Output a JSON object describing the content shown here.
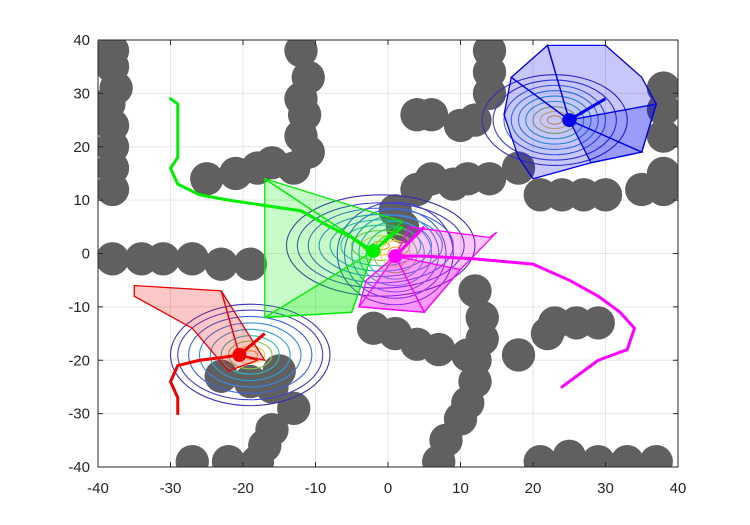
{
  "chart_data": {
    "type": "scatter",
    "title": "",
    "xlabel": "",
    "ylabel": "",
    "xlim": [
      -40,
      40
    ],
    "ylim": [
      -40,
      40
    ],
    "grid": true,
    "x_ticks": [
      -40,
      -30,
      -20,
      -10,
      0,
      10,
      20,
      30,
      40
    ],
    "y_ticks": [
      -40,
      -30,
      -20,
      -10,
      0,
      10,
      20,
      30,
      40
    ],
    "x_tick_labels": [
      "-40",
      "-30",
      "-20",
      "-10",
      "0",
      "10",
      "20",
      "30",
      "40"
    ],
    "y_tick_labels": [
      "-40",
      "-30",
      "-20",
      "-10",
      "0",
      "10",
      "20",
      "30",
      "40"
    ],
    "obstacle_color": "#606060",
    "obstacle_radius": 2.3,
    "obstacles": [
      [
        -38,
        38
      ],
      [
        -38,
        35
      ],
      [
        -37.5,
        31
      ],
      [
        -38.5,
        28
      ],
      [
        -38,
        24
      ],
      [
        -38,
        20
      ],
      [
        -38,
        16
      ],
      [
        -38,
        12
      ],
      [
        -12,
        38
      ],
      [
        -11,
        33
      ],
      [
        -12,
        29
      ],
      [
        -11.5,
        26
      ],
      [
        -12,
        22
      ],
      [
        -11,
        19
      ],
      [
        -13,
        16
      ],
      [
        -16,
        17
      ],
      [
        -18,
        16
      ],
      [
        -21,
        15
      ],
      [
        -25,
        14
      ],
      [
        -38,
        -1
      ],
      [
        -34,
        -1
      ],
      [
        -31,
        -1
      ],
      [
        -27,
        -1
      ],
      [
        -23,
        -2
      ],
      [
        -19,
        -2
      ],
      [
        -23,
        -23
      ],
      [
        -19,
        -24
      ],
      [
        -15,
        -22
      ],
      [
        -16,
        -25
      ],
      [
        -13,
        -29
      ],
      [
        -16,
        -33
      ],
      [
        -17,
        -36
      ],
      [
        -18,
        -39
      ],
      [
        -22,
        -39
      ],
      [
        -27,
        -39
      ],
      [
        14,
        38
      ],
      [
        14,
        34
      ],
      [
        14,
        30
      ],
      [
        12,
        25
      ],
      [
        10,
        24
      ],
      [
        6,
        26
      ],
      [
        4,
        26
      ],
      [
        2,
        5
      ],
      [
        1,
        8
      ],
      [
        4,
        12
      ],
      [
        6,
        14
      ],
      [
        9,
        13
      ],
      [
        11,
        14
      ],
      [
        14,
        14
      ],
      [
        18,
        16
      ],
      [
        21,
        11
      ],
      [
        24,
        11
      ],
      [
        27,
        11
      ],
      [
        30,
        11
      ],
      [
        35,
        12
      ],
      [
        38,
        12
      ],
      [
        38,
        15
      ],
      [
        38,
        22
      ],
      [
        38,
        27
      ],
      [
        38,
        31
      ],
      [
        -2,
        -14
      ],
      [
        1,
        -15
      ],
      [
        4,
        -17
      ],
      [
        7,
        -18
      ],
      [
        11,
        -19
      ],
      [
        12,
        -7
      ],
      [
        13,
        -12
      ],
      [
        13,
        -16
      ],
      [
        12,
        -20
      ],
      [
        12,
        -24
      ],
      [
        11,
        -28
      ],
      [
        10,
        -31
      ],
      [
        8,
        -35
      ],
      [
        7,
        -39
      ],
      [
        18,
        -19
      ],
      [
        22,
        -15
      ],
      [
        23,
        -13
      ],
      [
        26,
        -13
      ],
      [
        29,
        -13
      ],
      [
        21,
        -39
      ],
      [
        25,
        -38
      ],
      [
        29,
        -39
      ],
      [
        33,
        -39
      ],
      [
        37,
        -39
      ]
    ],
    "series": [
      {
        "color": "#00ee00",
        "path": [
          [
            -30,
            29
          ],
          [
            -29,
            28
          ],
          [
            -29,
            24
          ],
          [
            -29,
            20
          ],
          [
            -29,
            18
          ],
          [
            -30,
            16
          ],
          [
            -29,
            13
          ],
          [
            -26,
            11
          ],
          [
            -22,
            10
          ],
          [
            -17,
            9
          ],
          [
            -12,
            8
          ],
          [
            -8,
            5
          ],
          [
            -5,
            3
          ],
          [
            -3,
            1
          ],
          [
            -2,
            0.5
          ]
        ],
        "robot": [
          -2,
          0.5
        ],
        "heading": [
          2,
          5
        ],
        "polygons": [
          [
            [
              -2,
              0.5
            ],
            [
              -17,
              14
            ],
            [
              -17,
              -12
            ],
            [
              -5,
              -11
            ]
          ],
          [
            [
              -2,
              0.5
            ],
            [
              -5,
              -11
            ],
            [
              -17,
              -12
            ]
          ],
          [
            [
              -2,
              0.5
            ],
            [
              2,
              6
            ],
            [
              -17,
              14
            ]
          ]
        ],
        "contour_center": [
          -1,
          1.5
        ],
        "contour_rx": [
          1.2,
          2.5,
          4,
          5.5,
          7,
          8.5,
          10,
          11.5,
          13
        ],
        "contour_ry": [
          0.8,
          1.8,
          2.8,
          3.8,
          4.8,
          5.8,
          7,
          8,
          9.5
        ]
      },
      {
        "color": "#ff00ff",
        "path": [
          [
            1,
            -0.5
          ],
          [
            5,
            -0.5
          ],
          [
            12,
            -1
          ],
          [
            20,
            -2
          ],
          [
            25,
            -5
          ],
          [
            29,
            -8
          ],
          [
            32,
            -11
          ],
          [
            34,
            -14
          ],
          [
            33,
            -18
          ],
          [
            29,
            -20
          ],
          [
            26,
            -23
          ],
          [
            24,
            -25
          ]
        ],
        "robot": [
          1,
          -0.5
        ],
        "heading": [
          5,
          5
        ],
        "polygons": [
          [
            [
              1,
              -0.5
            ],
            [
              3,
              5
            ],
            [
              14,
              3
            ],
            [
              15,
              4
            ],
            [
              10,
              -3
            ],
            [
              5,
              -11
            ],
            [
              -4,
              -10
            ],
            [
              -3,
              -5
            ]
          ],
          [
            [
              1,
              -0.5
            ],
            [
              5,
              -11
            ],
            [
              -4,
              -10
            ]
          ],
          [
            [
              1,
              -0.5
            ],
            [
              10,
              -3
            ],
            [
              5,
              -11
            ]
          ]
        ],
        "contour_center": [
          1,
          0
        ],
        "contour_rx": [
          1,
          2,
          3,
          4,
          5,
          6,
          7,
          8
        ],
        "contour_ry": [
          1.2,
          2.4,
          3.6,
          4.8,
          6,
          7.2,
          8.4,
          9.6
        ]
      },
      {
        "color": "#ee0000",
        "path": [
          [
            -29,
            -30
          ],
          [
            -29,
            -27
          ],
          [
            -30,
            -24
          ],
          [
            -29,
            -21
          ],
          [
            -26,
            -20
          ],
          [
            -23,
            -19.5
          ],
          [
            -20.5,
            -19
          ]
        ],
        "robot": [
          -20.5,
          -19
        ],
        "heading": [
          -17,
          -15
        ],
        "polygons": [
          [
            [
              -20.5,
              -19
            ],
            [
              -23,
              -7
            ],
            [
              -35,
              -6
            ],
            [
              -35,
              -8
            ],
            [
              -27,
              -14
            ],
            [
              -22,
              -22
            ],
            [
              -18,
              -20
            ]
          ],
          [
            [
              -20.5,
              -19
            ],
            [
              -23,
              -7
            ],
            [
              -17,
              -20
            ]
          ]
        ],
        "contour_center": [
          -19,
          -19
        ],
        "contour_rx": [
          1,
          2,
          3,
          4,
          5.5,
          7,
          8.5,
          10,
          11
        ],
        "contour_ry": [
          0.8,
          1.6,
          2.6,
          3.6,
          4.8,
          6,
          7.2,
          8.4,
          9.5
        ]
      },
      {
        "color": "#0000ee",
        "path": [],
        "robot": [
          25,
          25
        ],
        "heading": [
          30,
          29
        ],
        "polygons": [
          [
            [
              25,
              25
            ],
            [
              22,
              39
            ],
            [
              30,
              39
            ],
            [
              35,
              33
            ],
            [
              37,
              28
            ],
            [
              35,
              19
            ],
            [
              28,
              17
            ],
            [
              20,
              14
            ],
            [
              18,
              18
            ],
            [
              16,
              26
            ],
            [
              17,
              33
            ]
          ],
          [
            [
              25,
              25
            ],
            [
              17,
              33
            ],
            [
              22,
              39
            ]
          ],
          [
            [
              25,
              25
            ],
            [
              35,
              19
            ],
            [
              37,
              28
            ]
          ],
          [
            [
              25,
              25
            ],
            [
              28,
              17
            ],
            [
              35,
              19
            ]
          ]
        ],
        "contour_center": [
          23,
          25
        ],
        "contour_rx": [
          1,
          2,
          3,
          4,
          5,
          6,
          7,
          8.5,
          10
        ],
        "contour_ry": [
          0.8,
          1.6,
          2.5,
          3.5,
          4.5,
          5.5,
          6.5,
          7.5,
          8.5
        ]
      }
    ],
    "contour_colors": [
      "#f7a023",
      "#eccd3a",
      "#8ac74a",
      "#35b6b0",
      "#2d9fd8",
      "#3a86e6",
      "#3f63e1",
      "#4040d0",
      "#3a30b8"
    ]
  }
}
